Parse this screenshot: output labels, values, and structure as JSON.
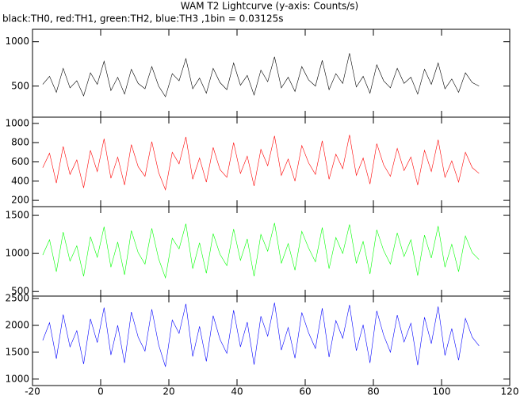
{
  "chart_data": [
    {
      "type": "line",
      "title": "WAM T2 Lightcurve (y-axis: Counts/s)",
      "subtitle": "black:TH0, red:TH1, green:TH2, blue:TH3 ,1bin = 0.03125s",
      "color": "#000000",
      "xlim": [
        -20,
        120
      ],
      "ylim": [
        150,
        1140
      ],
      "yticks": [
        500,
        1000
      ],
      "x": [
        -17,
        -15,
        -13,
        -11,
        -9,
        -7,
        -5,
        -3,
        -1,
        1,
        3,
        5,
        7,
        9,
        11,
        13,
        15,
        17,
        19,
        21,
        23,
        25,
        27,
        29,
        31,
        33,
        35,
        37,
        39,
        41,
        43,
        45,
        47,
        49,
        51,
        53,
        55,
        57,
        59,
        61,
        63,
        65,
        67,
        69,
        71,
        73,
        75,
        77,
        79,
        81,
        83,
        85,
        87,
        89,
        91,
        93,
        95,
        97,
        99,
        101,
        103,
        105,
        107,
        109,
        111
      ],
      "values": [
        520,
        610,
        430,
        700,
        480,
        560,
        390,
        650,
        520,
        780,
        450,
        600,
        410,
        690,
        530,
        470,
        720,
        500,
        380,
        640,
        560,
        810,
        470,
        590,
        420,
        700,
        540,
        460,
        760,
        510,
        620,
        400,
        680,
        550,
        830,
        480,
        600,
        440,
        720,
        570,
        500,
        790,
        460,
        640,
        530,
        870,
        490,
        610,
        420,
        740,
        560,
        480,
        700,
        530,
        600,
        410,
        690,
        520,
        760,
        470,
        580,
        430,
        650,
        540,
        500
      ]
    },
    {
      "type": "line",
      "color": "#ff0000",
      "xlim": [
        -20,
        120
      ],
      "ylim": [
        135,
        1065
      ],
      "yticks": [
        200,
        400,
        600,
        800,
        1000
      ],
      "x": [
        -17,
        -15,
        -13,
        -11,
        -9,
        -7,
        -5,
        -3,
        -1,
        1,
        3,
        5,
        7,
        9,
        11,
        13,
        15,
        17,
        19,
        21,
        23,
        25,
        27,
        29,
        31,
        33,
        35,
        37,
        39,
        41,
        43,
        45,
        47,
        49,
        51,
        53,
        55,
        57,
        59,
        61,
        63,
        65,
        67,
        69,
        71,
        73,
        75,
        77,
        79,
        81,
        83,
        85,
        87,
        89,
        91,
        93,
        95,
        97,
        99,
        101,
        103,
        105,
        107,
        109,
        111
      ],
      "values": [
        540,
        690,
        380,
        760,
        470,
        620,
        330,
        720,
        500,
        840,
        430,
        650,
        360,
        780,
        550,
        450,
        810,
        490,
        310,
        700,
        580,
        860,
        420,
        640,
        390,
        750,
        520,
        440,
        800,
        480,
        660,
        350,
        730,
        560,
        870,
        460,
        630,
        400,
        770,
        590,
        470,
        820,
        420,
        680,
        530,
        880,
        460,
        640,
        370,
        790,
        570,
        450,
        740,
        510,
        650,
        360,
        720,
        500,
        830,
        440,
        610,
        390,
        700,
        540,
        480
      ]
    },
    {
      "type": "line",
      "color": "#00ff00",
      "xlim": [
        -20,
        120
      ],
      "ylim": [
        440,
        1615
      ],
      "yticks": [
        500,
        1000,
        1500
      ],
      "x": [
        -17,
        -15,
        -13,
        -11,
        -9,
        -7,
        -5,
        -3,
        -1,
        1,
        3,
        5,
        7,
        9,
        11,
        13,
        15,
        17,
        19,
        21,
        23,
        25,
        27,
        29,
        31,
        33,
        35,
        37,
        39,
        41,
        43,
        45,
        47,
        49,
        51,
        53,
        55,
        57,
        59,
        61,
        63,
        65,
        67,
        69,
        71,
        73,
        75,
        77,
        79,
        81,
        83,
        85,
        87,
        89,
        91,
        93,
        95,
        97,
        99,
        101,
        103,
        105,
        107,
        109,
        111
      ],
      "values": [
        980,
        1180,
        760,
        1280,
        900,
        1100,
        700,
        1220,
        950,
        1350,
        820,
        1150,
        720,
        1300,
        1010,
        860,
        1330,
        930,
        680,
        1200,
        1060,
        1390,
        800,
        1140,
        740,
        1260,
        990,
        840,
        1320,
        910,
        1190,
        700,
        1250,
        1030,
        1400,
        870,
        1130,
        780,
        1290,
        1070,
        890,
        1340,
        800,
        1210,
        1000,
        1380,
        870,
        1160,
        730,
        1310,
        1040,
        860,
        1270,
        960,
        1180,
        710,
        1240,
        940,
        1360,
        820,
        1120,
        760,
        1230,
        1010,
        920
      ]
    },
    {
      "type": "line",
      "color": "#0000ff",
      "xlim": [
        -20,
        120
      ],
      "ylim": [
        880,
        2545
      ],
      "yticks": [
        1000,
        1500,
        2000,
        2500
      ],
      "xticks": [
        -20,
        0,
        20,
        40,
        60,
        80,
        100,
        120
      ],
      "x": [
        -17,
        -15,
        -13,
        -11,
        -9,
        -7,
        -5,
        -3,
        -1,
        1,
        3,
        5,
        7,
        9,
        11,
        13,
        15,
        17,
        19,
        21,
        23,
        25,
        27,
        29,
        31,
        33,
        35,
        37,
        39,
        41,
        43,
        45,
        47,
        49,
        51,
        53,
        55,
        57,
        59,
        61,
        63,
        65,
        67,
        69,
        71,
        73,
        75,
        77,
        79,
        81,
        83,
        85,
        87,
        89,
        91,
        93,
        95,
        97,
        99,
        101,
        103,
        105,
        107,
        109,
        111
      ],
      "values": [
        1720,
        2050,
        1380,
        2200,
        1600,
        1900,
        1280,
        2120,
        1680,
        2330,
        1450,
        2000,
        1300,
        2250,
        1780,
        1520,
        2300,
        1640,
        1230,
        2100,
        1850,
        2400,
        1420,
        1980,
        1330,
        2180,
        1740,
        1480,
        2280,
        1600,
        2060,
        1270,
        2170,
        1800,
        2420,
        1540,
        1960,
        1390,
        2240,
        1860,
        1570,
        2320,
        1410,
        2090,
        1760,
        2380,
        1530,
        2010,
        1300,
        2270,
        1820,
        1500,
        2190,
        1690,
        2040,
        1260,
        2150,
        1660,
        2350,
        1440,
        1940,
        1350,
        2130,
        1780,
        1620
      ]
    }
  ]
}
